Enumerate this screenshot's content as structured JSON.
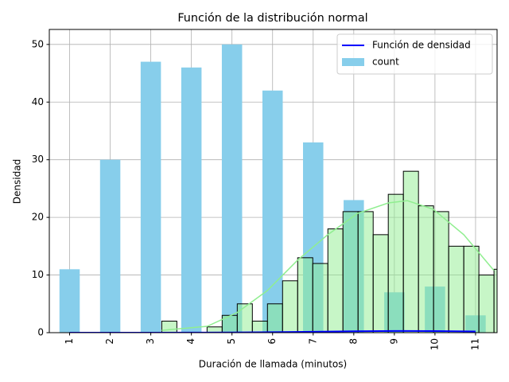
{
  "chart_data": {
    "type": "bar",
    "title": "Función de la distribución normal",
    "xlabel": "Duración de llamada (minutos)",
    "ylabel": "Densidad",
    "categories": [
      "1",
      "2",
      "3",
      "4",
      "5",
      "6",
      "7",
      "8",
      "9",
      "10",
      "11"
    ],
    "series": [
      {
        "name": "count",
        "color": "#87ceeb",
        "values": [
          11,
          30,
          47,
          46,
          50,
          42,
          33,
          23,
          7,
          8,
          3
        ]
      }
    ],
    "histogram": {
      "color": "#90ee90",
      "edgecolor": "#000000",
      "bins": [
        2.27,
        2.642,
        3.014,
        3.386,
        3.758,
        4.13,
        4.502,
        4.874,
        5.246,
        5.618,
        5.99,
        6.362,
        6.734,
        7.106,
        7.478,
        7.85,
        8.222,
        8.594,
        8.966,
        9.338,
        9.71,
        10.082,
        10.454,
        10.826
      ],
      "counts": [
        2,
        0,
        0,
        1,
        3,
        5,
        2,
        5,
        9,
        13,
        12,
        18,
        21,
        21,
        17,
        24,
        28,
        22,
        21,
        15,
        15,
        10,
        11
      ]
    },
    "lines": [
      {
        "color": "#90ee90",
        "x": [
          2.27,
          3.39,
          4.13,
          4.87,
          5.62,
          6.36,
          7.1,
          7.85,
          8.32,
          8.96,
          9.71,
          10.45
        ],
        "values": [
          0.4,
          1.1,
          3.5,
          7.3,
          12.6,
          17,
          20.7,
          22.5,
          22.9,
          21.4,
          17,
          10.8
        ]
      },
      {
        "name": "Función de densidad",
        "color": "#0000ff",
        "x": [
          0,
          1,
          2,
          3,
          4,
          5,
          6,
          7,
          8,
          9,
          10
        ],
        "values": [
          0,
          0,
          0,
          0.01,
          0.03,
          0.08,
          0.15,
          0.25,
          0.3,
          0.28,
          0.2
        ]
      }
    ],
    "xlim": [
      -0.5,
      10.53
    ],
    "ylim": [
      0,
      52.6
    ],
    "yticks": [
      0,
      10,
      20,
      30,
      40,
      50
    ],
    "grid": true,
    "legend": "upper right"
  }
}
